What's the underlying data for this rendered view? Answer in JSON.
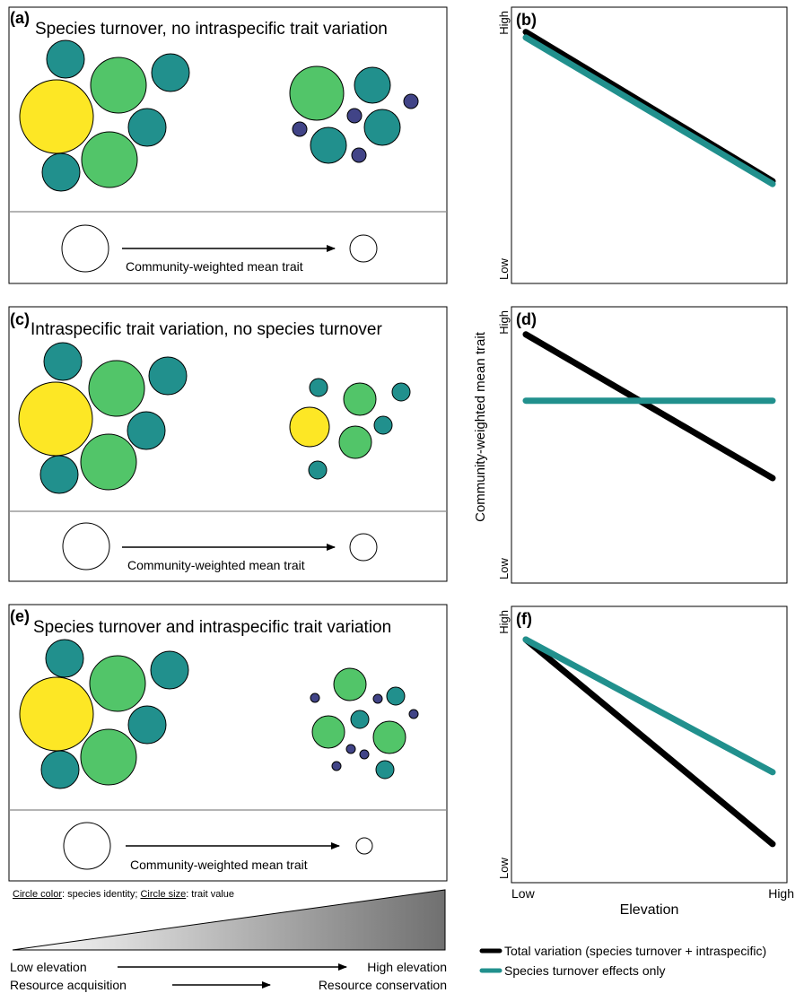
{
  "colors": {
    "yellow": "#fde725",
    "green": "#52c569",
    "teal": "#21908d",
    "purple": "#414487",
    "black": "#000000",
    "teal_line": "#21908d"
  },
  "panels": {
    "a": {
      "letter": "(a)",
      "title": "Species turnover, no intraspecific trait variation",
      "cwm_label": "Community-weighted mean trait"
    },
    "c": {
      "letter": "(c)",
      "title": "Intraspecific trait variation, no species turnover",
      "cwm_label": "Community-weighted mean trait"
    },
    "e": {
      "letter": "(e)",
      "title": "Species turnover and intraspecific trait variation",
      "cwm_label": "Community-weighted mean trait"
    }
  },
  "caption": {
    "circle_color_label": "Circle color",
    "circle_color_text": ": species identity; ",
    "circle_size_label": "Circle size",
    "circle_size_text": ": trait value"
  },
  "gradient": {
    "low_elevation": "Low elevation",
    "high_elevation": "High elevation",
    "resource_acquisition": "Resource acquisition",
    "resource_conservation": "Resource conservation"
  },
  "chart_data": [
    {
      "panel": "(b)",
      "type": "line",
      "xlim": [
        0,
        1
      ],
      "ylim": [
        0,
        1
      ],
      "y_tick_labels": [
        "Low",
        "High"
      ],
      "series": [
        {
          "color": "#000000",
          "x": [
            0,
            1
          ],
          "y": [
            0.91,
            0.37
          ]
        },
        {
          "color": "#21908d",
          "x": [
            0,
            1
          ],
          "y": [
            0.89,
            0.36
          ]
        }
      ]
    },
    {
      "panel": "(d)",
      "type": "line",
      "xlim": [
        0,
        1
      ],
      "ylim": [
        0,
        1
      ],
      "y_tick_labels": [
        "Low",
        "High"
      ],
      "ylabel": "Community-weighted mean trait",
      "series": [
        {
          "color": "#000000",
          "x": [
            0,
            1
          ],
          "y": [
            0.9,
            0.38
          ]
        },
        {
          "color": "#21908d",
          "x": [
            0,
            1
          ],
          "y": [
            0.66,
            0.66
          ]
        }
      ]
    },
    {
      "panel": "(f)",
      "type": "line",
      "xlim": [
        0,
        1
      ],
      "ylim": [
        0,
        1
      ],
      "y_tick_labels": [
        "Low",
        "High"
      ],
      "x_tick_labels": [
        "Low",
        "High"
      ],
      "xlabel": "Elevation",
      "series": [
        {
          "name": "Total variation (species turnover + intraspecific)",
          "color": "#000000",
          "x": [
            0,
            1
          ],
          "y": [
            0.88,
            0.14
          ]
        },
        {
          "name": "Species turnover effects only",
          "color": "#21908d",
          "x": [
            0,
            1
          ],
          "y": [
            0.88,
            0.4
          ]
        }
      ]
    }
  ]
}
